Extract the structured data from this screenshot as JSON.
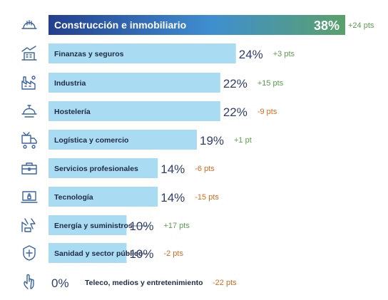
{
  "colors": {
    "bar": "#a9dcf3",
    "top_bar_start": "#233f8f",
    "top_bar_mid": "#3f8fd1",
    "top_bar_end": "#5aa06a",
    "label_dark": "#1f2a44",
    "value": "#2e3e6e",
    "positive": "#5a9e4e",
    "negative": "#d96a1e",
    "icon": "#3a63a6"
  },
  "chart_data": {
    "type": "bar",
    "orientation": "horizontal",
    "xlim": [
      0,
      38
    ],
    "grid": false,
    "categories": [
      "Construcción e inmobiliario",
      "Finanzas y seguros",
      "Industria",
      "Hostelería",
      "Logística y comercio",
      "Servicios profesionales",
      "Tecnología",
      "Energía y suministros",
      "Sanidad y sector público",
      "Teleco, medios y entretenimiento"
    ],
    "values": [
      38,
      24,
      22,
      22,
      19,
      14,
      14,
      10,
      10,
      0
    ],
    "value_labels": [
      "38%",
      "24%",
      "22%",
      "22%",
      "19%",
      "14%",
      "14%",
      "10%",
      "10%",
      "0%"
    ],
    "change_labels": [
      "+24 pts",
      "+3 pts",
      "+15 pts",
      "-9 pts",
      "+1 pt",
      "-6 pts",
      "-15 pts",
      "+17 pts",
      "-2 pts",
      "-22 pts"
    ],
    "change_values": [
      24,
      3,
      15,
      -9,
      1,
      -6,
      -15,
      17,
      -2,
      -22
    ],
    "icons": [
      "hard-hat-icon",
      "building-chart-icon",
      "factory-icon",
      "cloche-icon",
      "delivery-truck-icon",
      "briefcase-icon",
      "laptop-lock-icon",
      "energy-icon",
      "shield-cross-icon",
      "hand-pointer-icon"
    ]
  }
}
